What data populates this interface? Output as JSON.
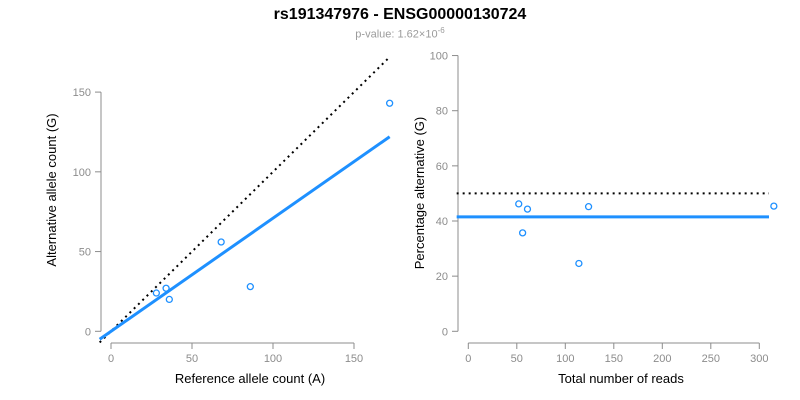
{
  "figure": {
    "title": "rs191347976 - ENSG00000130724",
    "subtitle_prefix": "p-value: ",
    "subtitle_value": "1.62×10",
    "subtitle_exponent": "-6"
  },
  "colors": {
    "accent_blue": "#1E90FF",
    "line_black": "#000000",
    "axis_gray": "#8c8c8c",
    "tick_label_gray": "#8c8c8c",
    "subtitle_gray": "#9b9b9b"
  },
  "chart_data": [
    {
      "type": "scatter",
      "panel": "left",
      "title": "",
      "xlabel": "Reference allele count (A)",
      "ylabel": "Alternative allele count (G)",
      "xticks": [
        0,
        50,
        100,
        150
      ],
      "yticks": [
        0,
        50,
        100,
        150
      ],
      "xlim": [
        -7,
        179
      ],
      "ylim": [
        -7,
        182
      ],
      "grid": false,
      "legend": "none",
      "points": [
        [
          28,
          24
        ],
        [
          34,
          27
        ],
        [
          36,
          20
        ],
        [
          68,
          56
        ],
        [
          86,
          28
        ],
        [
          172,
          143
        ]
      ],
      "lines": [
        {
          "name": "identity-line",
          "style": "dotted",
          "color": "#000000",
          "width": 2,
          "x1": -7,
          "y1": -7,
          "x2": 172,
          "y2": 172
        },
        {
          "name": "fit-line",
          "style": "solid",
          "color": "#1E90FF",
          "width": 3,
          "x1": -7,
          "y1": -5,
          "x2": 172,
          "y2": 122
        }
      ]
    },
    {
      "type": "scatter",
      "panel": "right",
      "title": "",
      "xlabel": "Total number of reads",
      "ylabel": "Percentage alternative (G)",
      "xticks": [
        0,
        50,
        100,
        150,
        200,
        250,
        300
      ],
      "yticks": [
        0,
        20,
        40,
        60,
        80,
        100
      ],
      "xlim": [
        -13,
        327
      ],
      "ylim": [
        -4,
        104
      ],
      "grid": false,
      "legend": "none",
      "points": [
        [
          52,
          46.2
        ],
        [
          61,
          44.3
        ],
        [
          56,
          35.7
        ],
        [
          124,
          45.2
        ],
        [
          114,
          24.6
        ],
        [
          315,
          45.4
        ]
      ],
      "lines": [
        {
          "name": "null-line",
          "style": "dotted",
          "color": "#000000",
          "width": 2,
          "x1": -12,
          "y1": 50,
          "x2": 310,
          "y2": 50
        },
        {
          "name": "fit-line",
          "style": "solid",
          "color": "#1E90FF",
          "width": 3,
          "x1": -12,
          "y1": 41.5,
          "x2": 310,
          "y2": 41.5
        }
      ]
    }
  ]
}
